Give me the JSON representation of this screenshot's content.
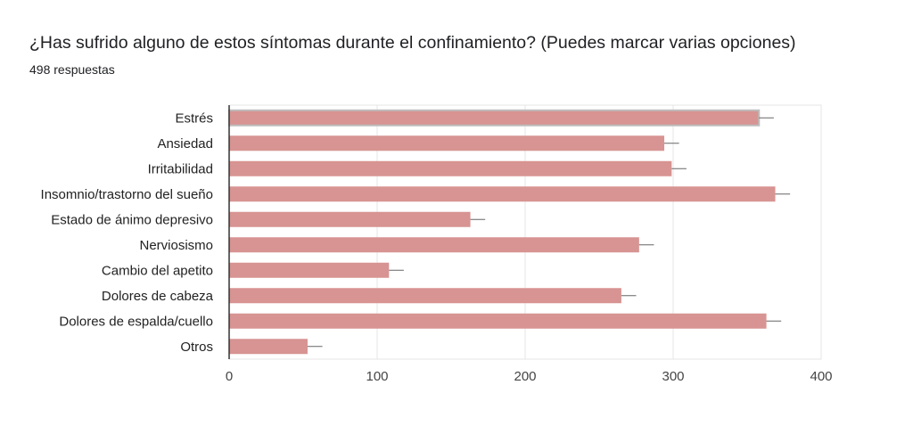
{
  "header": {
    "title": "¿Has sufrido alguno de estos síntomas durante el confinamiento? (Puedes marcar varias opciones)",
    "responses": "498 respuestas"
  },
  "chart_data": {
    "type": "bar",
    "orientation": "horizontal",
    "categories": [
      "Estrés",
      "Ansiedad",
      "Irritabilidad",
      "Insomnio/trastorno del sueño",
      "Estado de ánimo depresivo",
      "Nerviosismo",
      "Cambio del apetito",
      "Dolores de cabeza",
      "Dolores de espalda/cuello",
      "Otros"
    ],
    "values": [
      358,
      294,
      299,
      369,
      163,
      277,
      108,
      265,
      363,
      53
    ],
    "error": 10,
    "xlim": [
      0,
      400
    ],
    "xticks": [
      "0",
      "100",
      "200",
      "300",
      "400"
    ],
    "grid": true,
    "bar_color": "#d79492",
    "highlighted_category": "Estrés"
  }
}
